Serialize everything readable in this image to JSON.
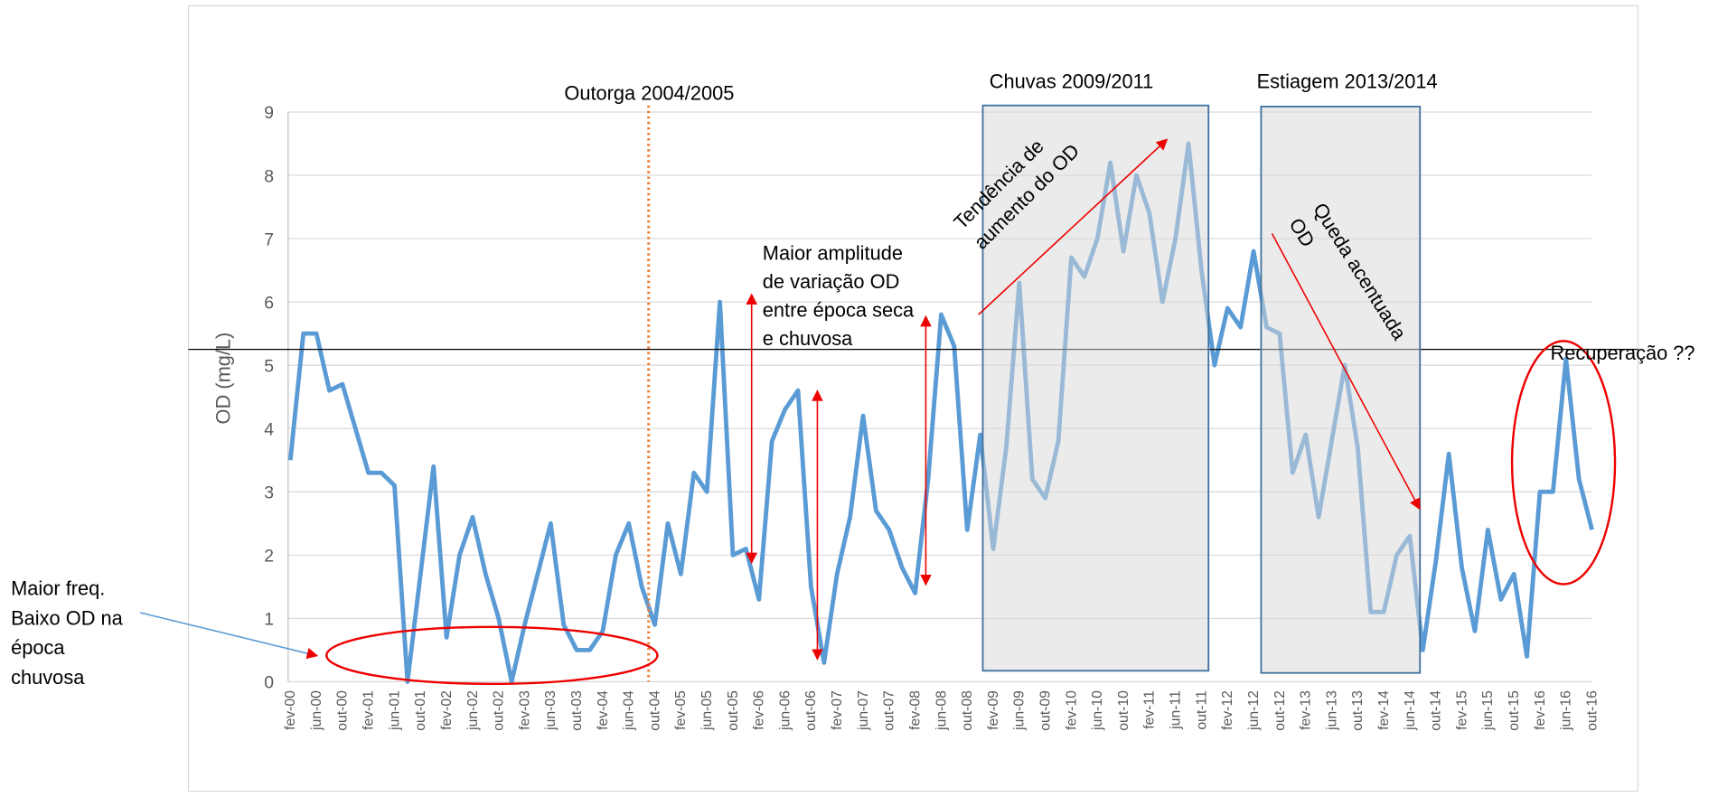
{
  "chart_data": {
    "type": "line",
    "ylabel": "OD (mg/L)",
    "ylim": [
      0,
      9
    ],
    "yticks": [
      0,
      1,
      2,
      3,
      4,
      5,
      6,
      7,
      8,
      9
    ],
    "grid": true,
    "categories": [
      "fev-00",
      null,
      "jun-00",
      null,
      "out-00",
      null,
      "fev-01",
      null,
      "jun-01",
      null,
      "out-01",
      null,
      "fev-02",
      null,
      "jun-02",
      null,
      "out-02",
      null,
      "fev-03",
      null,
      "jun-03",
      null,
      "out-03",
      null,
      "fev-04",
      null,
      "jun-04",
      null,
      "out-04",
      null,
      "fev-05",
      null,
      "jun-05",
      null,
      "out-05",
      null,
      "fev-06",
      null,
      "jun-06",
      null,
      "out-06",
      null,
      "fev-07",
      null,
      "jun-07",
      null,
      "out-07",
      null,
      "fev-08",
      null,
      "jun-08",
      null,
      "out-08",
      null,
      "fev-09",
      null,
      "jun-09",
      null,
      "out-09",
      null,
      "fev-10",
      null,
      "jun-10",
      null,
      "out-10",
      null,
      "fev-11",
      null,
      "jun-11",
      null,
      "out-11",
      null,
      "fev-12",
      null,
      "jun-12",
      null,
      "out-12",
      null,
      "fev-13",
      null,
      "jun-13",
      null,
      "out-13",
      null,
      "fev-14",
      null,
      "jun-14",
      null,
      "out-14",
      null,
      "fev-15",
      null,
      "jun-15",
      null,
      "out-15",
      null,
      "fev-16",
      null,
      "jun-16",
      null,
      "out-16"
    ],
    "series": [
      {
        "color": "#5b9bd5",
        "values": [
          3.5,
          5.5,
          5.5,
          4.6,
          4.7,
          4.0,
          3.3,
          3.3,
          3.1,
          0,
          1.7,
          3.4,
          0.7,
          2.0,
          2.6,
          1.7,
          1.0,
          0,
          0.9,
          1.7,
          2.5,
          0.9,
          0.5,
          0.5,
          0.8,
          2.0,
          2.5,
          1.5,
          0.9,
          2.5,
          1.7,
          3.3,
          3.0,
          6.0,
          2.0,
          2.1,
          1.3,
          3.8,
          4.3,
          4.6,
          1.5,
          0.3,
          1.7,
          2.6,
          4.2,
          2.7,
          2.4,
          1.8,
          1.4,
          3.2,
          5.8,
          5.3,
          2.4,
          3.9,
          2.1,
          3.7,
          6.3,
          3.2,
          2.9,
          3.8,
          6.7,
          6.4,
          7.0,
          8.2,
          6.8,
          8.0,
          7.4,
          6.0,
          7.0,
          8.5,
          6.5,
          5.0,
          5.9,
          5.6,
          6.8,
          5.6,
          5.5,
          3.3,
          3.9,
          2.6,
          3.8,
          5.0,
          3.7,
          1.1,
          1.1,
          2.0,
          2.3,
          0.5,
          1.9,
          3.6,
          1.8,
          0.8,
          2.4,
          1.3,
          1.7,
          0.4,
          3.0,
          3.0,
          5.1,
          3.2,
          2.4
        ]
      }
    ],
    "reference_line": 5.25,
    "annotations": [
      [
        "Outorga 2004/2005"
      ],
      [
        "Chuvas 2009/2011"
      ],
      [
        "Estiagem 2013/2014"
      ],
      [
        "Maior amplitude",
        "de variação OD",
        "entre época seca",
        "e chuvosa"
      ],
      [
        "Tendência de",
        "aumento do OD"
      ],
      [
        "Queda acentuada",
        "OD"
      ],
      [
        "Recuperação ??"
      ],
      [
        "Maior  freq.",
        "Baixo OD na",
        "época",
        "chuvosa"
      ]
    ]
  }
}
